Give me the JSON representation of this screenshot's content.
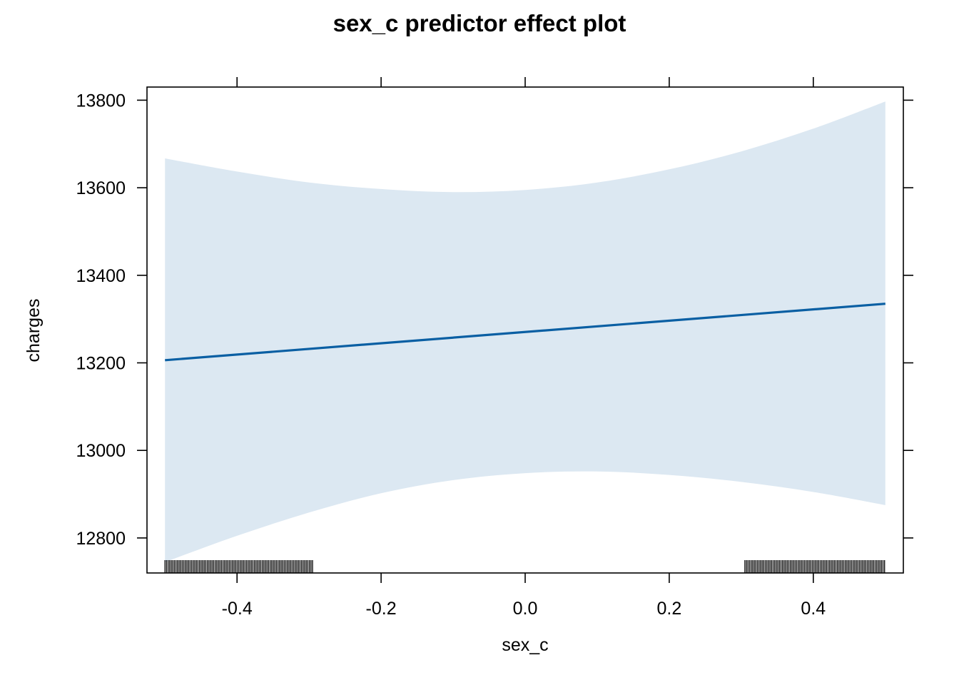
{
  "chart_data": {
    "type": "line",
    "title": "sex_c predictor effect plot",
    "xlabel": "sex_c",
    "ylabel": "charges",
    "xlim": [
      -0.525,
      0.525
    ],
    "ylim": [
      12720,
      13830
    ],
    "x_ticks": [
      -0.4,
      -0.2,
      0.0,
      0.2,
      0.4
    ],
    "x_tick_labels": [
      "-0.4",
      "-0.2",
      "0.0",
      "0.2",
      "0.4"
    ],
    "y_ticks": [
      12800,
      13000,
      13200,
      13400,
      13600,
      13800
    ],
    "y_tick_labels": [
      "12800",
      "13000",
      "13200",
      "13400",
      "13600",
      "13800"
    ],
    "grid": false,
    "series": [
      {
        "x": [
          -0.5,
          0.5
        ],
        "y": [
          13206,
          13335
        ],
        "color": "#0a5fa3"
      }
    ],
    "confidence_band": {
      "color": "#dce8f2",
      "x": [
        -0.5,
        -0.4,
        -0.3,
        -0.2,
        -0.1,
        0.0,
        0.1,
        0.2,
        0.3,
        0.4,
        0.5
      ],
      "lower": [
        12745,
        12805,
        12858,
        12902,
        12932,
        12948,
        12952,
        12944,
        12928,
        12905,
        12875
      ],
      "upper": [
        13667,
        13637,
        13612,
        13597,
        13590,
        13595,
        13612,
        13642,
        13683,
        13735,
        13797
      ]
    },
    "rug": {
      "color": "#000000",
      "groups": [
        {
          "from": -0.5,
          "to": -0.295
        },
        {
          "from": 0.305,
          "to": 0.5
        }
      ]
    }
  }
}
